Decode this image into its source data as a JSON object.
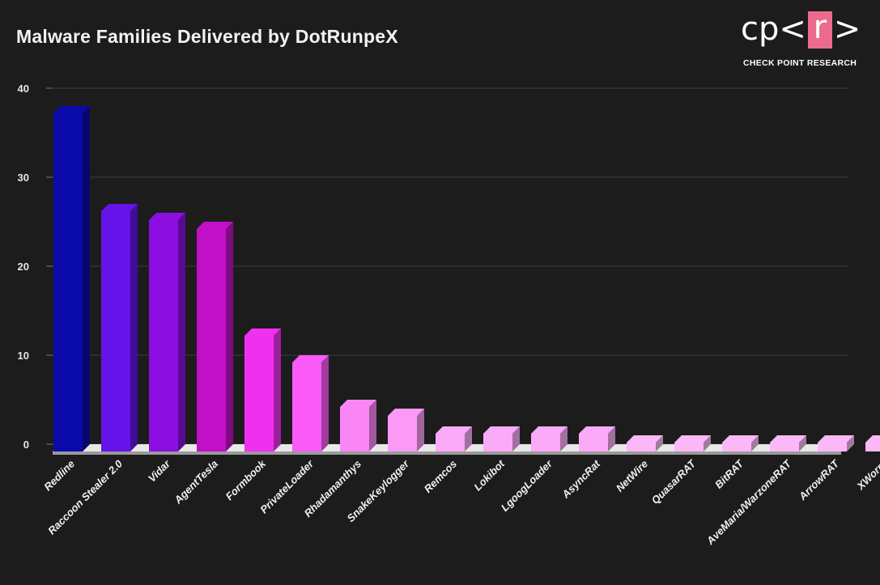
{
  "chart_data": {
    "type": "bar",
    "title": "Malware Families Delivered by DotRunpeX",
    "xlabel": "",
    "ylabel": "",
    "ylim": [
      0,
      40
    ],
    "yticks": [
      "0",
      "10",
      "20",
      "30",
      "40"
    ],
    "grid": true,
    "categories": [
      "Redline",
      "Raccoon Stealer 2.0",
      "Vidar",
      "AgentTesla",
      "Formbook",
      "PrivateLoader",
      "Rhadamanthys",
      "SnakeKeylogger",
      "Remcos",
      "Lokibot",
      "LgoogLoader",
      "AsyncRat",
      "NetWire",
      "QuasarRAT",
      "BitRAT",
      "AveMaria/WarzoneRAT",
      "ArrowRAT",
      "XWorm"
    ],
    "values": [
      38,
      27,
      26,
      25,
      13,
      10,
      5,
      4,
      2,
      2,
      2,
      2,
      1,
      1,
      1,
      1,
      1,
      1
    ],
    "colors": [
      "#0a0aa8",
      "#6414e8",
      "#8a0fe0",
      "#c010c8",
      "#f030f0",
      "#fa5af8",
      "#fa86f6",
      "#fa9af6",
      "#fbaaf7",
      "#fbaaf7",
      "#fbaaf7",
      "#fbaaf7",
      "#fbb8f8",
      "#fbb8f8",
      "#fbb8f8",
      "#fbb8f8",
      "#fbb8f8",
      "#fbb8f8"
    ]
  },
  "logo": {
    "cp": "cp",
    "lt": "<",
    "r": "r",
    "gt": ">",
    "tagline": "CHECK POINT RESEARCH"
  }
}
